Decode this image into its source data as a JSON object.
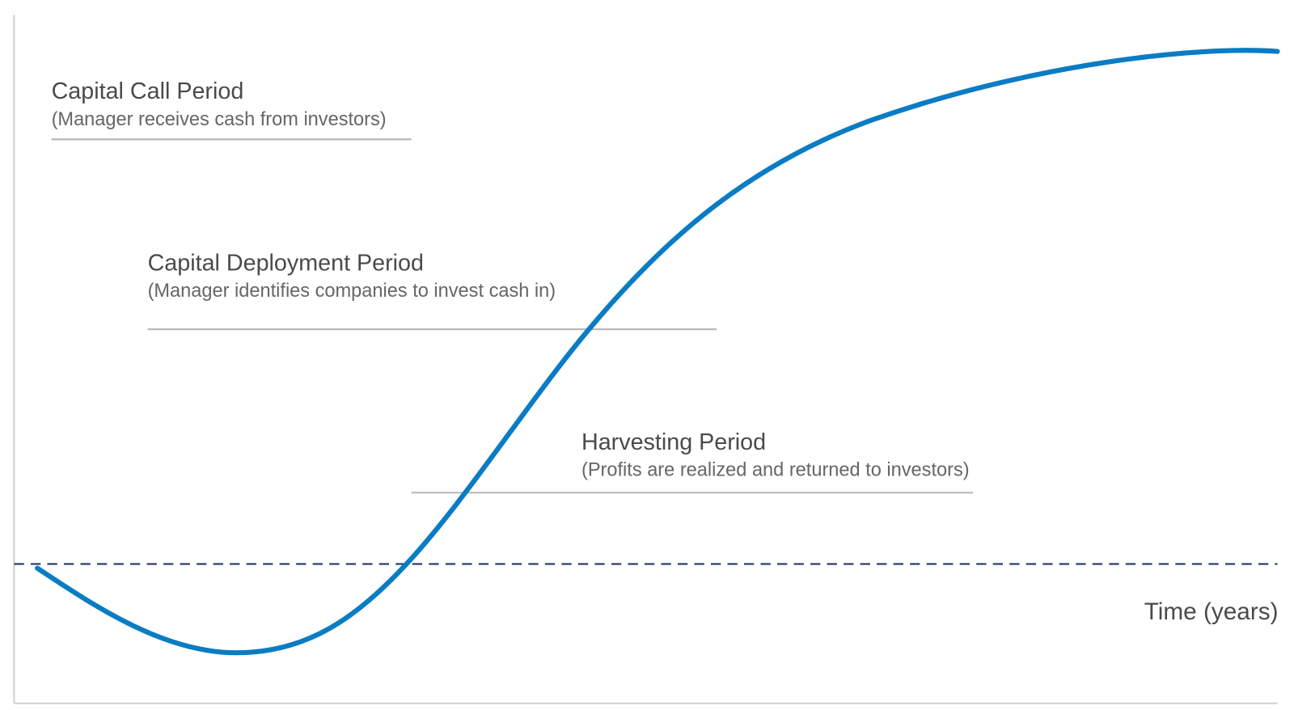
{
  "periods": [
    {
      "title": "Capital Call Period",
      "subtitle": "(Manager receives cash from investors)"
    },
    {
      "title": "Capital Deployment Period",
      "subtitle": "(Manager identifies companies to invest cash in)"
    },
    {
      "title": "Harvesting Period",
      "subtitle": "(Profits are realized and returned to investors)"
    }
  ],
  "axis_label": "Time (years)"
}
